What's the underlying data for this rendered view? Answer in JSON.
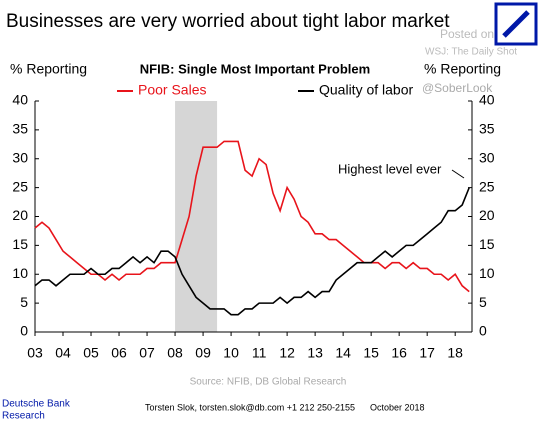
{
  "chart_data": {
    "type": "line",
    "title": "Businesses are very worried about tight labor market",
    "subtitle": "NFIB: Single Most Important Problem",
    "ylabel": "% Reporting",
    "y2label": "% Reporting",
    "annotation": "Highest level ever",
    "source": "Source: NFIB, DB Global Research",
    "footer": {
      "brand": "Deutsche Bank",
      "unit": "Research",
      "author": "Torsten Slok, torsten.slok@db.com  +1 212 250-2155",
      "date": "October 2018"
    },
    "watermark": [
      "Posted on",
      "WSJ: The Daily Shot",
      "@SoberLook"
    ],
    "x": [
      2003,
      2003.25,
      2003.5,
      2003.75,
      2004,
      2004.25,
      2004.5,
      2004.75,
      2005,
      2005.25,
      2005.5,
      2005.75,
      2006,
      2006.25,
      2006.5,
      2006.75,
      2007,
      2007.25,
      2007.5,
      2007.75,
      2008,
      2008.25,
      2008.5,
      2008.75,
      2009,
      2009.25,
      2009.5,
      2009.75,
      2010,
      2010.25,
      2010.5,
      2010.75,
      2011,
      2011.25,
      2011.5,
      2011.75,
      2012,
      2012.25,
      2012.5,
      2012.75,
      2013,
      2013.25,
      2013.5,
      2013.75,
      2014,
      2014.25,
      2014.5,
      2014.75,
      2015,
      2015.25,
      2015.5,
      2015.75,
      2016,
      2016.25,
      2016.5,
      2016.75,
      2017,
      2017.25,
      2017.5,
      2017.75,
      2018,
      2018.25,
      2018.5
    ],
    "series": [
      {
        "name": "Poor Sales",
        "color": "#e8141b",
        "values": [
          18,
          19,
          18,
          16,
          14,
          13,
          12,
          11,
          10,
          10,
          9,
          10,
          9,
          10,
          10,
          10,
          11,
          11,
          12,
          12,
          12,
          16,
          20,
          27,
          32,
          32,
          32,
          33,
          33,
          33,
          28,
          27,
          30,
          29,
          24,
          21,
          25,
          23,
          20,
          19,
          17,
          17,
          16,
          16,
          15,
          14,
          13,
          12,
          12,
          12,
          11,
          12,
          12,
          11,
          12,
          11,
          11,
          10,
          10,
          9,
          10,
          8,
          7
        ]
      },
      {
        "name": "Quality of labor",
        "color": "#000000",
        "values": [
          8,
          9,
          9,
          8,
          9,
          10,
          10,
          10,
          11,
          10,
          10,
          11,
          11,
          12,
          13,
          12,
          13,
          12,
          14,
          14,
          13,
          10,
          8,
          6,
          5,
          4,
          4,
          4,
          3,
          3,
          4,
          4,
          5,
          5,
          5,
          6,
          5,
          6,
          6,
          7,
          6,
          7,
          7,
          9,
          10,
          11,
          12,
          12,
          12,
          13,
          14,
          13,
          14,
          15,
          15,
          16,
          17,
          18,
          19,
          21,
          21,
          22,
          25
        ]
      }
    ],
    "shade": [
      2008,
      2009.5
    ],
    "xlim": [
      2003,
      2018.6
    ],
    "xticks": [
      {
        "value": 2003,
        "label": "03"
      },
      {
        "value": 2004,
        "label": "04"
      },
      {
        "value": 2005,
        "label": "05"
      },
      {
        "value": 2006,
        "label": "06"
      },
      {
        "value": 2007,
        "label": "07"
      },
      {
        "value": 2008,
        "label": "08"
      },
      {
        "value": 2009,
        "label": "09"
      },
      {
        "value": 2010,
        "label": "10"
      },
      {
        "value": 2011,
        "label": "11"
      },
      {
        "value": 2012,
        "label": "12"
      },
      {
        "value": 2013,
        "label": "13"
      },
      {
        "value": 2014,
        "label": "14"
      },
      {
        "value": 2015,
        "label": "15"
      },
      {
        "value": 2016,
        "label": "16"
      },
      {
        "value": 2017,
        "label": "17"
      },
      {
        "value": 2018,
        "label": "18"
      }
    ],
    "ylim": [
      0,
      40
    ],
    "yticks": [
      0,
      5,
      10,
      15,
      20,
      25,
      30,
      35,
      40
    ],
    "y2lim": [
      0,
      40
    ],
    "y2ticks": [
      0,
      5,
      10,
      15,
      20,
      25,
      30,
      35,
      40
    ]
  }
}
